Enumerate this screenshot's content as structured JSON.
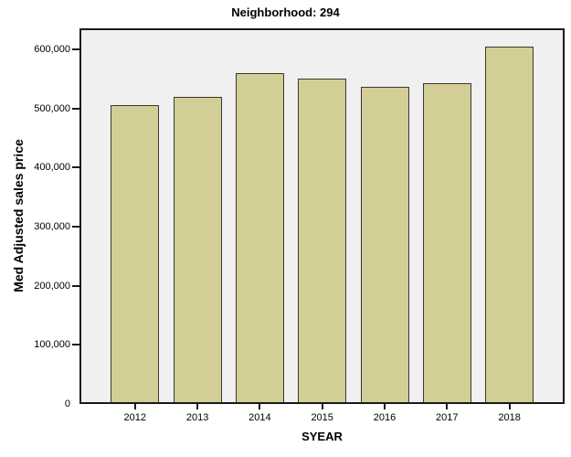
{
  "chart_data": {
    "type": "bar",
    "title": "Neighborhood: 294",
    "xlabel": "SYEAR",
    "ylabel": "Med Adjusted sales price",
    "categories": [
      "2012",
      "2013",
      "2014",
      "2015",
      "2016",
      "2017",
      "2018"
    ],
    "values": [
      502000,
      516000,
      557000,
      547000,
      533000,
      540000,
      601000
    ],
    "ylim": [
      0,
      635000
    ],
    "yticks": [
      0,
      100000,
      200000,
      300000,
      400000,
      500000,
      600000
    ],
    "ytick_labels": [
      "0",
      "100,000",
      "200,000",
      "300,000",
      "400,000",
      "500,000",
      "600,000"
    ],
    "grid": false,
    "legend_position": "none",
    "colors": {
      "bar_fill": "#d2ce96",
      "bar_border": "#3b392c",
      "plot_background": "#f0f0f0",
      "axis": "#1a1a1a",
      "text": "#000000",
      "page_background": "#ffffff"
    }
  }
}
